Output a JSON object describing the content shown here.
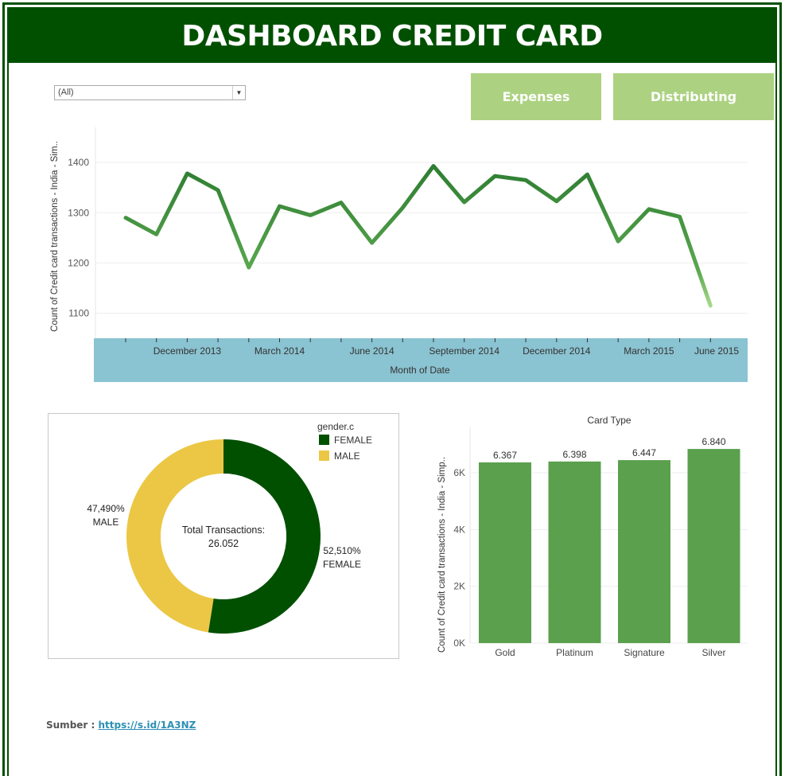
{
  "title": "DASHBOARD CREDIT CARD",
  "filter": {
    "selected": "(All)"
  },
  "nav": {
    "expenses": "Expenses",
    "distributing": "Distributing"
  },
  "colors": {
    "dark_green": "#005000",
    "button_green": "#acd281",
    "line_green": "#3d8f45",
    "bar_green": "#5aa04d",
    "female": "#005000",
    "male": "#ebc745",
    "axis_band": "#8ac3d1"
  },
  "chart_data": [
    {
      "type": "line",
      "title": "",
      "xlabel": "Month of Date",
      "ylabel": "Count of Credit card transactions - India - Sim..",
      "ylim": [
        1050,
        1470
      ],
      "yticks": [
        "1100",
        "1200",
        "1300",
        "1400"
      ],
      "x_tick_labels": [
        "December 2013",
        "March 2014",
        "June 2014",
        "September 2014",
        "December 2014",
        "March 2015",
        "June 2015"
      ],
      "x_tick_index": [
        2,
        5,
        8,
        11,
        14,
        17,
        19.2
      ],
      "values": [
        1290,
        1257,
        1378,
        1345,
        1191,
        1313,
        1295,
        1320,
        1240,
        1310,
        1393,
        1321,
        1373,
        1365,
        1323,
        1376,
        1243,
        1307,
        1292,
        1115
      ]
    },
    {
      "type": "pie",
      "legend_title": "gender.c",
      "legend": [
        "FEMALE",
        "MALE"
      ],
      "values": [
        52.51,
        47.49
      ],
      "labels": [
        {
          "pct": "52,510%",
          "name": "FEMALE"
        },
        {
          "pct": "47,490%",
          "name": "MALE"
        }
      ],
      "center_label": "Total Transactions:",
      "center_value": "26.052"
    },
    {
      "type": "bar",
      "title": "Card Type",
      "ylabel": "Count of Credit card transactions - India - Simp..",
      "categories": [
        "Gold",
        "Platinum",
        "Signature",
        "Silver"
      ],
      "values": [
        6367,
        6398,
        6447,
        6840
      ],
      "value_labels": [
        "6.367",
        "6.398",
        "6.447",
        "6.840"
      ],
      "ylim": [
        0,
        7600
      ],
      "yticks": [
        "0K",
        "2K",
        "4K",
        "6K"
      ],
      "ytick_values": [
        0,
        2000,
        4000,
        6000
      ]
    }
  ],
  "source": {
    "label": "Sumber :",
    "link": "https://s.id/1A3NZ"
  }
}
